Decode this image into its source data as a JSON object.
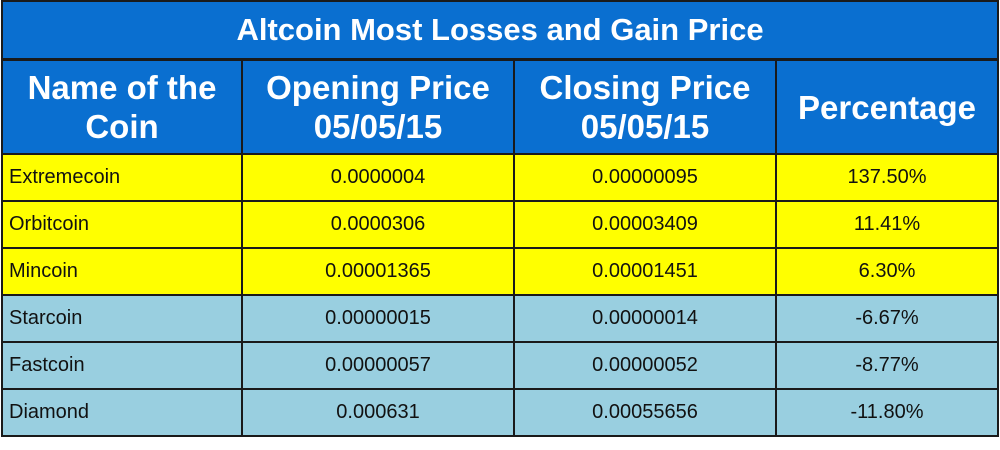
{
  "chart_data": {
    "type": "table",
    "title": "Altcoin Most Losses and Gain Price",
    "columns": [
      {
        "lines": [
          "Name of the",
          "Coin"
        ]
      },
      {
        "lines": [
          "Opening Price",
          "05/05/15"
        ]
      },
      {
        "lines": [
          "Closing Price",
          "05/05/15"
        ]
      },
      {
        "lines": [
          "Percentage"
        ]
      }
    ],
    "rows": [
      {
        "name": "Extremecoin",
        "opening": "0.0000004",
        "closing": "0.00000095",
        "percentage": "137.50%"
      },
      {
        "name": "Orbitcoin",
        "opening": "0.0000306",
        "closing": "0.00003409",
        "percentage": "11.41%"
      },
      {
        "name": "Mincoin",
        "opening": "0.00001365",
        "closing": "0.00001451",
        "percentage": "6.30%"
      },
      {
        "name": "Starcoin",
        "opening": "0.00000015",
        "closing": "0.00000014",
        "percentage": "-6.67%"
      },
      {
        "name": "Fastcoin",
        "opening": "0.00000057",
        "closing": "0.00000052",
        "percentage": "-8.77%"
      },
      {
        "name": "Diamond",
        "opening": "0.000631",
        "closing": "0.00055656",
        "percentage": "-11.80%"
      }
    ],
    "colors": {
      "header_bg": "#0a6fd0",
      "header_text": "#ffffff",
      "gain_row_bg": "#ffff00",
      "loss_row_bg": "#99cfe0",
      "border": "#1a1a1a"
    }
  }
}
